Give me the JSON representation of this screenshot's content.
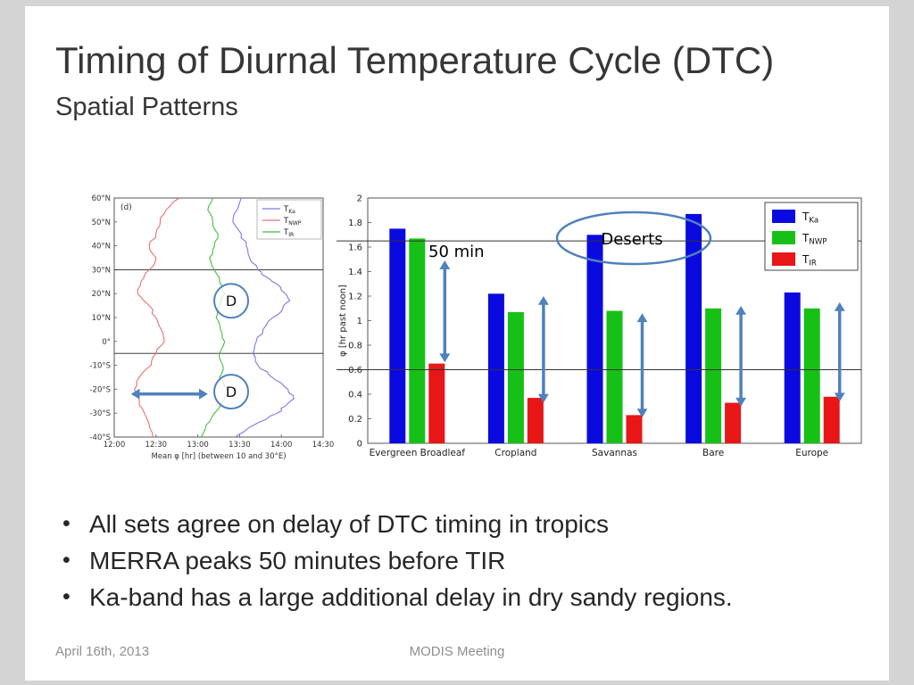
{
  "slide": {
    "title": "Timing of Diurnal Temperature Cycle (DTC)",
    "subtitle": "Spatial Patterns",
    "bullets": [
      "All sets agree on delay of DTC timing in tropics",
      "MERRA peaks 50 minutes before TIR",
      "Ka-band has a large additional delay in dry sandy regions."
    ],
    "footer": {
      "date": "April 16th, 2013",
      "event": "MODIS Meeting"
    }
  },
  "colors": {
    "accent_arrow": "#4f81bd",
    "bar_ka": "#0a0ae0",
    "bar_nwp": "#16c016",
    "bar_ir": "#e81616",
    "line_ka": "#7a7ae8",
    "line_nwp": "#e87070",
    "line_ir": "#46bc46"
  },
  "chart_data": [
    {
      "type": "line",
      "panel_label": "(d)",
      "xlabel": "Mean φ [hr] (between 10 and 30°E)",
      "x_ticks": [
        "12:00",
        "12:30",
        "13:00",
        "13:30",
        "14:00",
        "14:30"
      ],
      "x_tick_hours": [
        12,
        12.5,
        13,
        13.5,
        14,
        14.5
      ],
      "y_ticks": [
        "60°N",
        "50°N",
        "40°N",
        "30°N",
        "20°N",
        "10°N",
        "0°",
        "-10°S",
        "-20°S",
        "-30°S",
        "-40°S"
      ],
      "y_tick_lats": [
        60,
        50,
        40,
        30,
        20,
        10,
        0,
        -10,
        -20,
        -30,
        -40
      ],
      "xlim_hours": [
        12,
        14.5
      ],
      "ylim_lat": [
        -40,
        60
      ],
      "ref_lines_lat": [
        30,
        -5
      ],
      "legend": [
        {
          "main": "T",
          "sub": "Ka",
          "color_key": "line_ka"
        },
        {
          "main": "T",
          "sub": "NWP",
          "color_key": "line_nwp"
        },
        {
          "main": "T",
          "sub": "IR",
          "color_key": "line_ir"
        }
      ],
      "series": [
        {
          "name": "T_Ka",
          "color_key": "line_ka",
          "points": [
            [
              60,
              13.52
            ],
            [
              55,
              13.47
            ],
            [
              50,
              13.42
            ],
            [
              45,
              13.52
            ],
            [
              40,
              13.58
            ],
            [
              35,
              13.62
            ],
            [
              30,
              13.72
            ],
            [
              27,
              13.82
            ],
            [
              24,
              13.95
            ],
            [
              20,
              14.05
            ],
            [
              17,
              14.1
            ],
            [
              14,
              14.02
            ],
            [
              10,
              13.9
            ],
            [
              5,
              13.78
            ],
            [
              0,
              13.7
            ],
            [
              -5,
              13.66
            ],
            [
              -10,
              13.72
            ],
            [
              -14,
              13.85
            ],
            [
              -17,
              13.98
            ],
            [
              -20,
              14.08
            ],
            [
              -24,
              14.15
            ],
            [
              -27,
              14.05
            ],
            [
              -30,
              13.95
            ],
            [
              -34,
              13.72
            ],
            [
              -37,
              13.58
            ],
            [
              -40,
              13.45
            ]
          ]
        },
        {
          "name": "T_NWP",
          "color_key": "line_nwp",
          "points": [
            [
              60,
              12.78
            ],
            [
              55,
              12.62
            ],
            [
              50,
              12.55
            ],
            [
              45,
              12.5
            ],
            [
              40,
              12.42
            ],
            [
              35,
              12.5
            ],
            [
              30,
              12.42
            ],
            [
              25,
              12.32
            ],
            [
              20,
              12.28
            ],
            [
              15,
              12.42
            ],
            [
              10,
              12.5
            ],
            [
              5,
              12.56
            ],
            [
              0,
              12.6
            ],
            [
              -5,
              12.5
            ],
            [
              -10,
              12.44
            ],
            [
              -15,
              12.3
            ],
            [
              -20,
              12.24
            ],
            [
              -25,
              12.3
            ],
            [
              -30,
              12.36
            ],
            [
              -35,
              12.42
            ],
            [
              -40,
              12.46
            ]
          ]
        },
        {
          "name": "T_IR",
          "color_key": "line_ir",
          "points": [
            [
              60,
              13.18
            ],
            [
              55,
              13.12
            ],
            [
              50,
              13.18
            ],
            [
              45,
              13.24
            ],
            [
              40,
              13.2
            ],
            [
              35,
              13.14
            ],
            [
              30,
              13.2
            ],
            [
              25,
              13.26
            ],
            [
              20,
              13.32
            ],
            [
              15,
              13.26
            ],
            [
              10,
              13.22
            ],
            [
              5,
              13.27
            ],
            [
              0,
              13.32
            ],
            [
              -5,
              13.26
            ],
            [
              -10,
              13.3
            ],
            [
              -15,
              13.26
            ],
            [
              -20,
              13.36
            ],
            [
              -25,
              13.3
            ],
            [
              -30,
              13.2
            ],
            [
              -35,
              13.1
            ],
            [
              -40,
              13.04
            ]
          ]
        }
      ],
      "annotations": {
        "d_circles": [
          {
            "label": "D",
            "lat": 17,
            "hour": 13.4
          },
          {
            "label": "D",
            "lat": -21,
            "hour": 13.4
          }
        ],
        "arrow": {
          "lat": -22,
          "hour_from": 12.2,
          "hour_to": 13.12
        }
      }
    },
    {
      "type": "bar",
      "ylabel": "φ [hr past noon]",
      "ylim": [
        0,
        2
      ],
      "y_ticks": [
        "0",
        "0.2",
        "0.4",
        "0.6",
        "0.8",
        "1",
        "1.2",
        "1.4",
        "1.6",
        "1.8",
        "2"
      ],
      "categories": [
        "Evergreen Broadleaf",
        "Cropland",
        "Savannas",
        "Bare",
        "Europe"
      ],
      "series": [
        {
          "main": "T",
          "sub": "Ka",
          "name": "T_Ka",
          "color_key": "bar_ka",
          "values": [
            1.75,
            1.22,
            1.7,
            1.87,
            1.23
          ]
        },
        {
          "main": "T",
          "sub": "NWP",
          "name": "T_NWP",
          "color_key": "bar_nwp",
          "values": [
            1.67,
            1.07,
            1.08,
            1.1,
            1.1
          ]
        },
        {
          "main": "T",
          "sub": "IR",
          "name": "T_IR",
          "color_key": "bar_ir",
          "values": [
            0.65,
            0.37,
            0.23,
            0.33,
            0.38
          ]
        }
      ],
      "gridlines": [
        1.65,
        0.6
      ],
      "annotations": {
        "label_50min": "50 min",
        "deserts_label": "Deserts",
        "arrows": [
          {
            "category_index": 0,
            "top": 1.49,
            "bottom": 0.66
          },
          {
            "category_index": 1,
            "top": 1.2,
            "bottom": 0.33
          },
          {
            "category_index": 2,
            "top": 1.06,
            "bottom": 0.21
          },
          {
            "category_index": 3,
            "top": 1.12,
            "bottom": 0.3
          },
          {
            "category_index": 4,
            "top": 1.15,
            "bottom": 0.34
          }
        ]
      }
    }
  ]
}
